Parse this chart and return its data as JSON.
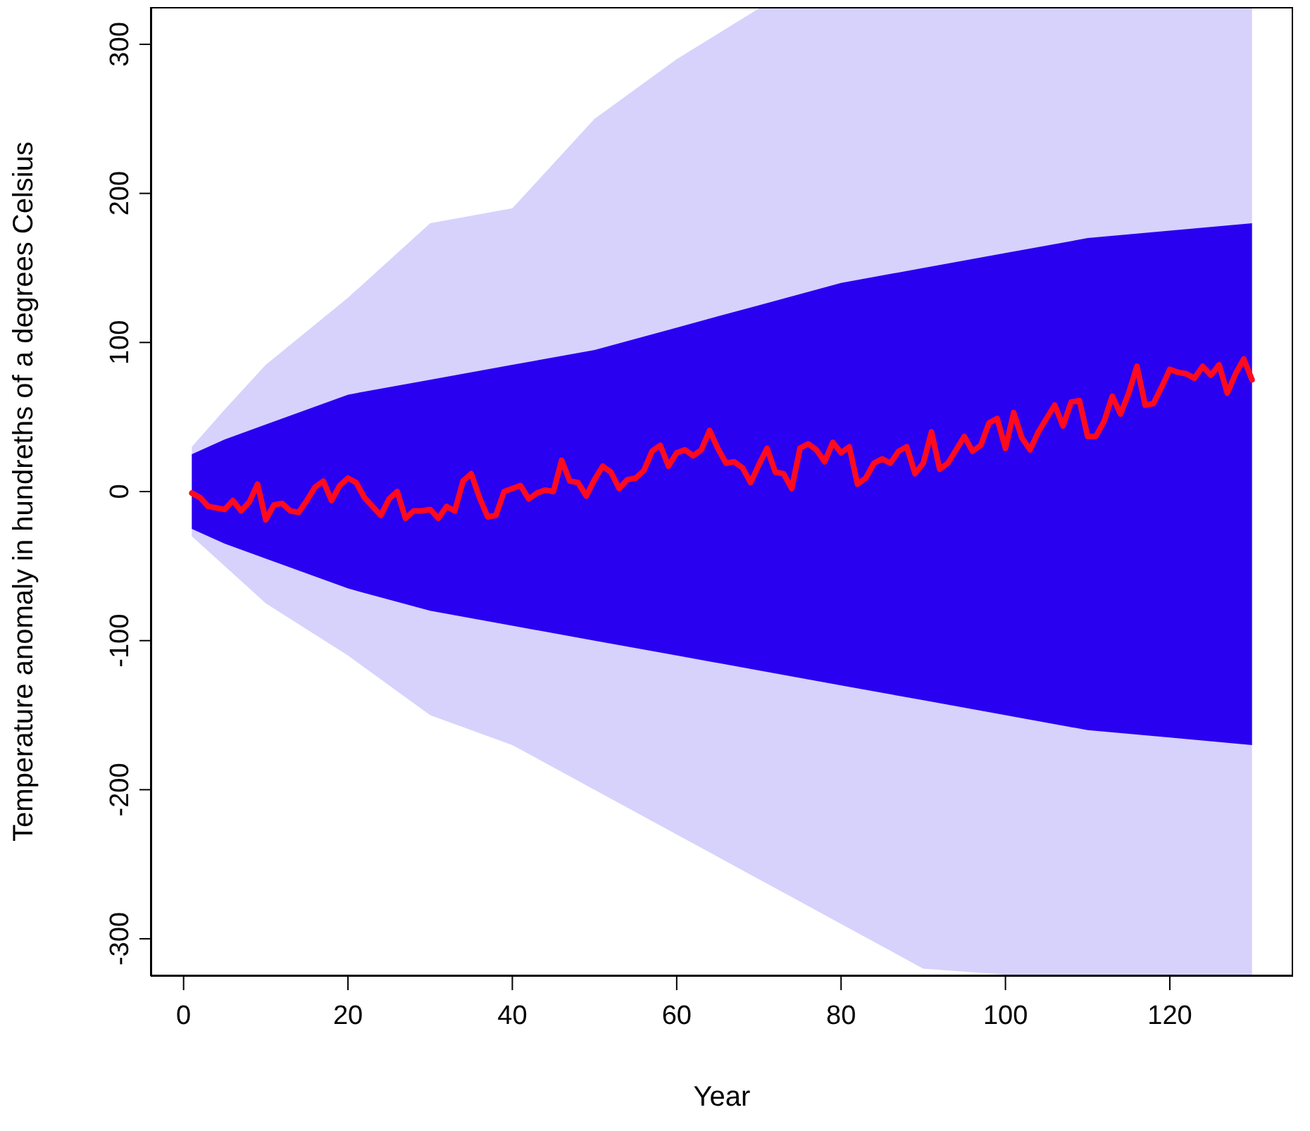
{
  "chart_data": {
    "type": "line",
    "xlabel": "Year",
    "ylabel": "Temperature anomaly in hundreths of a degrees Celsius",
    "xlim": [
      -4,
      135
    ],
    "xticks": [
      0,
      20,
      40,
      60,
      80,
      100,
      120
    ],
    "ylim": [
      -325,
      325
    ],
    "yticks": [
      -300,
      -200,
      -100,
      0,
      100,
      200,
      300
    ],
    "x": [
      1,
      2,
      3,
      4,
      5,
      6,
      7,
      8,
      9,
      10,
      11,
      12,
      13,
      14,
      15,
      16,
      17,
      18,
      19,
      20,
      21,
      22,
      23,
      24,
      25,
      26,
      27,
      28,
      29,
      30,
      31,
      32,
      33,
      34,
      35,
      36,
      37,
      38,
      39,
      40,
      41,
      42,
      43,
      44,
      45,
      46,
      47,
      48,
      49,
      50,
      51,
      52,
      53,
      54,
      55,
      56,
      57,
      58,
      59,
      60,
      61,
      62,
      63,
      64,
      65,
      66,
      67,
      68,
      69,
      70,
      71,
      72,
      73,
      74,
      75,
      76,
      77,
      78,
      79,
      80,
      81,
      82,
      83,
      84,
      85,
      86,
      87,
      88,
      89,
      90,
      91,
      92,
      93,
      94,
      95,
      96,
      97,
      98,
      99,
      100,
      101,
      102,
      103,
      104,
      105,
      106,
      107,
      108,
      109,
      110,
      111,
      112,
      113,
      114,
      115,
      116,
      117,
      118,
      119,
      120,
      121,
      122,
      123,
      124,
      125,
      126,
      127,
      128,
      129,
      130
    ],
    "series": [
      {
        "type": "area",
        "color": "#d6d2fc",
        "x": [
          1,
          5,
          10,
          20,
          30,
          40,
          50,
          60,
          70,
          80,
          90,
          100,
          110,
          120,
          130
        ],
        "values": [
          30,
          55,
          85,
          130,
          180,
          190,
          250,
          290,
          324,
          324,
          324,
          324,
          324,
          324,
          324
        ]
      },
      {
        "type": "area",
        "color": "#d6d2fc",
        "x": [
          1,
          5,
          10,
          20,
          30,
          40,
          50,
          60,
          70,
          80,
          90,
          100,
          110,
          120,
          130
        ],
        "values": [
          -30,
          -50,
          -75,
          -110,
          -150,
          -170,
          -200,
          -230,
          -260,
          -290,
          -320,
          -324,
          -324,
          -324,
          -324
        ]
      },
      {
        "type": "area",
        "color": "#2a00f0",
        "x": [
          1,
          5,
          10,
          20,
          30,
          40,
          50,
          60,
          70,
          80,
          90,
          100,
          110,
          120,
          130
        ],
        "values": [
          25,
          35,
          45,
          65,
          75,
          85,
          95,
          110,
          125,
          140,
          150,
          160,
          170,
          175,
          180
        ]
      },
      {
        "type": "area",
        "color": "#2a00f0",
        "x": [
          1,
          5,
          10,
          20,
          30,
          40,
          50,
          60,
          70,
          80,
          90,
          100,
          110,
          120,
          130
        ],
        "values": [
          -25,
          -35,
          -45,
          -65,
          -80,
          -90,
          -100,
          -110,
          -120,
          -130,
          -140,
          -150,
          -160,
          -165,
          -170
        ]
      },
      {
        "type": "line",
        "color": "#ff0a1e",
        "values": [
          -1,
          -4,
          -10,
          -11,
          -12,
          -6,
          -13,
          -7,
          5,
          -19,
          -9,
          -8,
          -13,
          -14,
          -6,
          3,
          7,
          -6,
          4,
          9,
          6,
          -4,
          -10,
          -16,
          -5,
          0,
          -18,
          -13,
          -13,
          -12,
          -18,
          -10,
          -13,
          7,
          12,
          -4,
          -17,
          -16,
          0,
          2,
          4,
          -5,
          -1,
          1,
          0,
          21,
          7,
          6,
          -3,
          8,
          17,
          13,
          2,
          8,
          9,
          14,
          27,
          31,
          17,
          26,
          28,
          24,
          28,
          41,
          29,
          19,
          20,
          16,
          6,
          18,
          29,
          13,
          12,
          2,
          29,
          32,
          28,
          20,
          33,
          26,
          30,
          5,
          9,
          19,
          22,
          19,
          27,
          30,
          12,
          19,
          40,
          15,
          19,
          28,
          37,
          27,
          31,
          46,
          49,
          29,
          53,
          36,
          28,
          40,
          49,
          58,
          44,
          60,
          61,
          37,
          37,
          47,
          64,
          52,
          66,
          84,
          58,
          59,
          70,
          82,
          80,
          79,
          76,
          84,
          78,
          85,
          66,
          79,
          89,
          75
        ]
      }
    ]
  }
}
